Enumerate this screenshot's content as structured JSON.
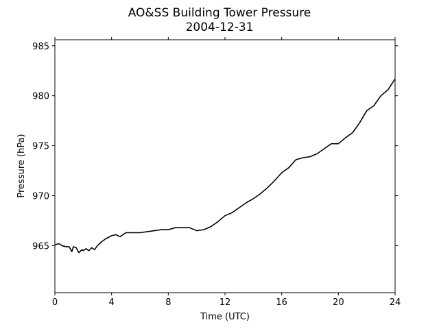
{
  "chart_data": {
    "type": "line",
    "title": "AO&SS Building Tower Pressure",
    "subtitle": "2004-12-31",
    "xlabel": "Time (UTC)",
    "ylabel": "Pressure (hPa)",
    "xlim": [
      0,
      24
    ],
    "ylim": [
      960.3,
      985.6
    ],
    "xticks": [
      0,
      4,
      8,
      12,
      16,
      20,
      24
    ],
    "xtick_labels": [
      "0",
      "4",
      "8",
      "12",
      "16",
      "20",
      "24"
    ],
    "yticks": [
      965,
      970,
      975,
      980,
      985
    ],
    "ytick_labels": [
      "965",
      "970",
      "975",
      "980",
      "985"
    ],
    "grid": false,
    "line_color": "#000000",
    "series": [
      {
        "x": [
          0,
          0.3,
          0.5,
          0.8,
          1.0,
          1.2,
          1.3,
          1.5,
          1.7,
          1.9,
          2.0,
          2.2,
          2.4,
          2.6,
          2.8,
          3.0,
          3.3,
          3.6,
          4.0,
          4.3,
          4.6,
          5.0,
          5.5,
          6.0,
          6.5,
          7.0,
          7.5,
          8.0,
          8.5,
          9.0,
          9.5,
          10.0,
          10.5,
          11.0,
          11.5,
          12.0,
          12.5,
          13.0,
          13.5,
          14.0,
          14.5,
          15.0,
          15.5,
          16.0,
          16.5,
          17.0,
          17.5,
          18.0,
          18.5,
          19.0,
          19.5,
          20.0,
          20.5,
          21.0,
          21.5,
          22.0,
          22.5,
          23.0,
          23.5,
          24.0
        ],
        "y": [
          965.1,
          965.2,
          965.0,
          964.9,
          964.9,
          964.4,
          964.9,
          964.8,
          964.3,
          964.6,
          964.5,
          964.7,
          964.5,
          964.8,
          964.6,
          965.0,
          965.4,
          965.7,
          966.0,
          966.1,
          965.9,
          966.3,
          966.3,
          966.3,
          966.4,
          966.5,
          966.6,
          966.6,
          966.8,
          966.8,
          966.8,
          966.5,
          966.6,
          966.9,
          967.4,
          968.0,
          968.3,
          968.8,
          969.3,
          969.7,
          970.2,
          970.8,
          971.5,
          972.3,
          972.8,
          973.6,
          973.8,
          973.9,
          974.2,
          974.7,
          975.2,
          975.2,
          975.8,
          976.3,
          977.3,
          978.5,
          979.0,
          980.0,
          980.6,
          981.7
        ]
      }
    ]
  }
}
